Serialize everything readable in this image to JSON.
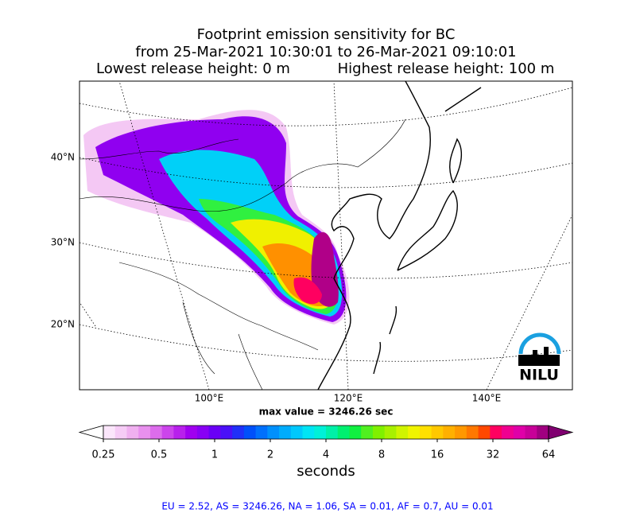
{
  "title": [
    "Footprint emission sensitivity for BC",
    "from 25-Mar-2021 10:30:01 to 26-Mar-2021 09:10:01",
    "Lowest release height: 0 m",
    "Highest release height: 100 m"
  ],
  "map": {
    "lat_labels": [
      "40°N",
      "30°N",
      "20°N"
    ],
    "lon_labels": [
      "100°E",
      "120°E",
      "140°E"
    ],
    "max_value_label": "max value = 3246.26 sec"
  },
  "colorbar": {
    "scale": "log",
    "ticks": [
      0.25,
      0.5,
      1,
      2,
      4,
      8,
      16,
      32,
      64
    ],
    "label": "seconds",
    "colors": [
      "#ffffff",
      "#fbe6fb",
      "#f6ccf6",
      "#f0b0f0",
      "#e890ee",
      "#dc6cec",
      "#cc44ec",
      "#b820ec",
      "#a000f0",
      "#8800f4",
      "#6a00f6",
      "#4a10f8",
      "#2030f8",
      "#0050fa",
      "#0070fc",
      "#0090fc",
      "#00acfc",
      "#00c8fc",
      "#00e4f4",
      "#00f0d8",
      "#00f0a8",
      "#00f070",
      "#10f040",
      "#50f020",
      "#80f000",
      "#a8f000",
      "#d0f400",
      "#f0f400",
      "#ffe000",
      "#ffc800",
      "#ffb000",
      "#ff9800",
      "#ff7800",
      "#ff4800",
      "#ff0060",
      "#f00090",
      "#e000a8",
      "#c80098",
      "#a00080",
      "#800070"
    ]
  },
  "logo": "NILU",
  "footer": "EU = 2.52,  AS = 3246.26,  NA = 1.06,  SA = 0.01,  AF = 0.7,  AU = 0.01"
}
